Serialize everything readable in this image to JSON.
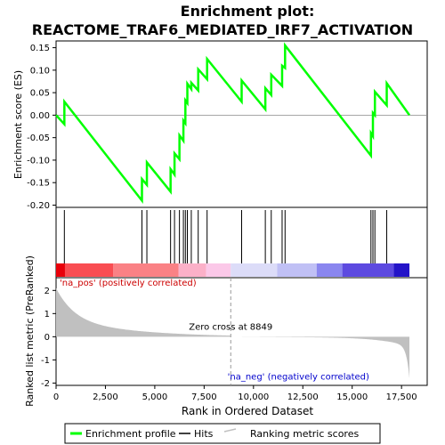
{
  "chart_data": {
    "type": "line",
    "title_line1": "Enrichment plot:",
    "title_line2": "REACTOME_TRAF6_MEDIATED_IRF7_ACTIVATION",
    "xlabel": "Rank in Ordered Dataset",
    "ylabel_top": "Enrichment score (ES)",
    "ylabel_bottom": "Ranked list metric (PreRanked)",
    "xlim": [
      0,
      18800
    ],
    "es_ylim": [
      -0.205,
      0.165
    ],
    "metric_ylim": [
      -2.1,
      2.55
    ],
    "x_ticks": [
      0,
      2500,
      5000,
      7500,
      10000,
      12500,
      15000,
      17500
    ],
    "x_tick_labels": [
      "0",
      "2,500",
      "5,000",
      "7,500",
      "10,000",
      "12,500",
      "15,000",
      "17,500"
    ],
    "es_ticks": [
      0.15,
      0.1,
      0.05,
      0.0,
      -0.05,
      -0.1,
      -0.15,
      -0.2
    ],
    "es_tick_labels": [
      "0.15",
      "0.10",
      "0.05",
      "0.00",
      "-0.05",
      "-0.10",
      "-0.15",
      "-0.20"
    ],
    "metric_ticks": [
      2,
      1,
      0,
      -1,
      -2
    ],
    "metric_tick_labels": [
      "2",
      "1",
      "0",
      "-1",
      "-2"
    ],
    "n_genes": 17900,
    "zero_cross": 8849,
    "zero_cross_label": "Zero cross at 8849",
    "pos_label": "'na_pos' (positively correlated)",
    "neg_label": "'na_neg' (negatively correlated)",
    "hits": [
      420,
      4350,
      4600,
      5800,
      6000,
      6250,
      6450,
      6550,
      6650,
      6850,
      7200,
      7650,
      9400,
      10600,
      10900,
      11450,
      11600,
      15950,
      16050,
      16150,
      16750
    ],
    "es_profile": {
      "x": [
        0,
        420,
        421,
        4350,
        4351,
        4600,
        4601,
        5800,
        5801,
        6000,
        6001,
        6250,
        6251,
        6450,
        6451,
        6550,
        6551,
        6650,
        6651,
        6850,
        6851,
        7200,
        7201,
        7650,
        7651,
        9400,
        9401,
        10600,
        10601,
        10900,
        10901,
        11450,
        11451,
        11600,
        11601,
        15950,
        15951,
        16050,
        16051,
        16150,
        16151,
        16750,
        16751,
        17900
      ],
      "y": [
        0.0,
        -0.02,
        0.03,
        -0.19,
        -0.142,
        -0.155,
        -0.105,
        -0.17,
        -0.12,
        -0.132,
        -0.085,
        -0.098,
        -0.045,
        -0.057,
        -0.012,
        -0.018,
        0.033,
        0.027,
        0.07,
        0.058,
        0.072,
        0.055,
        0.102,
        0.08,
        0.125,
        0.03,
        0.077,
        0.013,
        0.06,
        0.045,
        0.09,
        0.065,
        0.11,
        0.105,
        0.155,
        -0.09,
        -0.04,
        -0.047,
        0.005,
        0.0,
        0.052,
        0.022,
        0.071,
        0.0
      ]
    },
    "colorbar": [
      {
        "from": 0,
        "to": 450,
        "color": "#e8000a"
      },
      {
        "from": 450,
        "to": 2900,
        "color": "#f94d52"
      },
      {
        "from": 2900,
        "to": 6200,
        "color": "#fa8185"
      },
      {
        "from": 6200,
        "to": 7600,
        "color": "#fbb0c8"
      },
      {
        "from": 7600,
        "to": 8849,
        "color": "#fbc8e8"
      },
      {
        "from": 8849,
        "to": 11200,
        "color": "#dcdcf8"
      },
      {
        "from": 11200,
        "to": 13200,
        "color": "#c0c0f5"
      },
      {
        "from": 13200,
        "to": 14500,
        "color": "#8a86ef"
      },
      {
        "from": 14500,
        "to": 17100,
        "color": "#5d4ae0"
      },
      {
        "from": 17100,
        "to": 17900,
        "color": "#2414c8"
      }
    ],
    "legend": [
      {
        "label": "Enrichment profile",
        "color": "#00ff00"
      },
      {
        "label": "Hits",
        "color": "#000000"
      },
      {
        "label": "Ranking metric scores",
        "color": "#c0c0c0"
      }
    ]
  }
}
